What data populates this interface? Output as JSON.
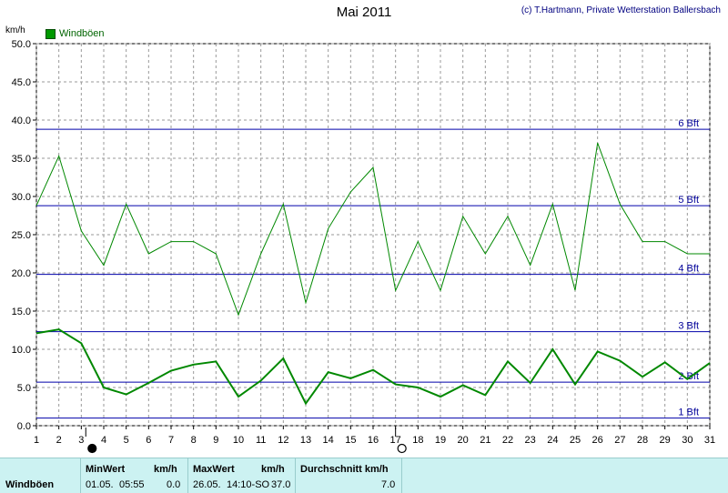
{
  "page_title": "Mai 2011",
  "credit": "(c) T.Hartmann, Private Wetterstation Ballersbach",
  "unit_label": "km/h",
  "legend_label": "Windböen",
  "chart_data": {
    "type": "line",
    "title": "Mai 2011",
    "ylabel": "km/h",
    "xlabel": "",
    "ylim": [
      0,
      50
    ],
    "xlim": [
      1,
      31
    ],
    "y_ticks": [
      "0.0",
      "5.0",
      "10.0",
      "15.0",
      "20.0",
      "25.0",
      "30.0",
      "35.0",
      "40.0",
      "45.0",
      "50.0"
    ],
    "x_ticks": [
      "1",
      "2",
      "3",
      "4",
      "5",
      "6",
      "7",
      "8",
      "9",
      "10",
      "11",
      "12",
      "13",
      "14",
      "15",
      "16",
      "17",
      "18",
      "19",
      "20",
      "21",
      "22",
      "23",
      "24",
      "25",
      "26",
      "27",
      "28",
      "29",
      "30",
      "31"
    ],
    "grid": true,
    "legend_position": "top-left",
    "beaufort_lines": [
      {
        "label": "1 Bft",
        "value": 1.0
      },
      {
        "label": "2 Bft",
        "value": 5.7
      },
      {
        "label": "3 Bft",
        "value": 12.3
      },
      {
        "label": "4 Bft",
        "value": 19.8
      },
      {
        "label": "5 Bft",
        "value": 28.8
      },
      {
        "label": "6 Bft",
        "value": 38.8
      }
    ],
    "series": [
      {
        "name": "Windböen",
        "style": "max",
        "color": "#008800",
        "x": [
          1,
          2,
          3,
          4,
          5,
          6,
          7,
          8,
          9,
          10,
          11,
          12,
          13,
          14,
          15,
          16,
          17,
          18,
          19,
          20,
          21,
          22,
          23,
          24,
          25,
          26,
          27,
          28,
          29,
          30,
          31
        ],
        "values": [
          28.8,
          35.3,
          25.5,
          21.0,
          29.0,
          22.5,
          24.1,
          24.1,
          22.5,
          14.5,
          22.5,
          29.0,
          16.1,
          25.8,
          30.6,
          33.8,
          17.7,
          24.1,
          17.7,
          27.4,
          22.5,
          27.4,
          21.0,
          29.0,
          17.7,
          37.0,
          29.0,
          24.1,
          24.1,
          22.5,
          22.5
        ]
      },
      {
        "name": "",
        "style": "mean",
        "color": "#008800",
        "x": [
          1,
          2,
          3,
          4,
          5,
          6,
          7,
          8,
          9,
          10,
          11,
          12,
          13,
          14,
          15,
          16,
          17,
          18,
          19,
          20,
          21,
          22,
          23,
          24,
          25,
          26,
          27,
          28,
          29,
          30,
          31
        ],
        "values": [
          12.1,
          12.6,
          10.8,
          5.0,
          4.1,
          5.6,
          7.2,
          8.0,
          8.4,
          3.8,
          5.9,
          8.8,
          2.9,
          7.0,
          6.2,
          7.3,
          5.4,
          5.0,
          3.8,
          5.3,
          4.0,
          8.4,
          5.6,
          10.0,
          5.4,
          9.7,
          8.5,
          6.4,
          8.3,
          6.1,
          8.2
        ]
      }
    ],
    "moon_phases": [
      {
        "type": "new-moon",
        "day": 3.2
      },
      {
        "type": "full-moon",
        "day": 17.0
      }
    ]
  },
  "stats_panel": {
    "row_label": "Windböen",
    "min": {
      "header": "MinWert",
      "unit": "km/h",
      "date": "01.05.",
      "time": "05:55",
      "value": "0.0"
    },
    "max": {
      "header": "MaxWert",
      "unit": "km/h",
      "date": "26.05.",
      "time": "14:10-SO",
      "value": "37.0"
    },
    "avg": {
      "header": "Durchschnitt km/h",
      "value": "7.0"
    }
  }
}
